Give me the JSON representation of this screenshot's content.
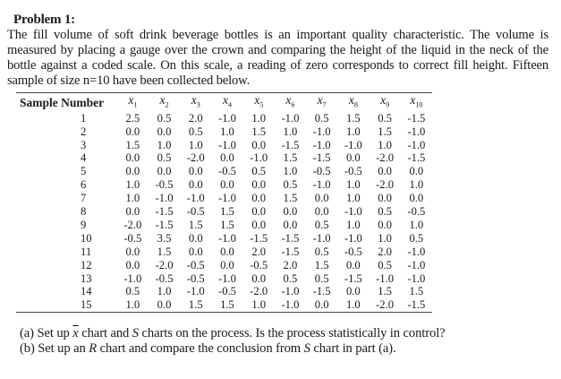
{
  "problem": {
    "title": "Problem 1:",
    "intro": "The fill volume of soft drink beverage bottles is an important quality characteristic. The volume is measured by placing a gauge over the crown and comparing the height of the liquid in the neck of the bottle against a coded scale. On this scale, a reading of zero corresponds to correct fill height. Fifteen sample of size n=10 have been collected below."
  },
  "table": {
    "sample_header": "Sample Number",
    "columns": [
      {
        "var": "x",
        "sub": "1"
      },
      {
        "var": "x",
        "sub": "2"
      },
      {
        "var": "x",
        "sub": "3"
      },
      {
        "var": "x",
        "sub": "4"
      },
      {
        "var": "x",
        "sub": "5"
      },
      {
        "var": "x",
        "sub": "6"
      },
      {
        "var": "x",
        "sub": "7"
      },
      {
        "var": "x",
        "sub": "8"
      },
      {
        "var": "x",
        "sub": "9"
      },
      {
        "var": "x",
        "sub": "10"
      }
    ],
    "rows": [
      {
        "sample": "1",
        "values": [
          "2.5",
          "0.5",
          "2.0",
          "-1.0",
          "1.0",
          "-1.0",
          "0.5",
          "1.5",
          "0.5",
          "-1.5"
        ]
      },
      {
        "sample": "2",
        "values": [
          "0.0",
          "0.0",
          "0.5",
          "1.0",
          "1.5",
          "1.0",
          "-1.0",
          "1.0",
          "1.5",
          "-1.0"
        ]
      },
      {
        "sample": "3",
        "values": [
          "1.5",
          "1.0",
          "1.0",
          "-1.0",
          "0.0",
          "-1.5",
          "-1.0",
          "-1.0",
          "1.0",
          "-1.0"
        ]
      },
      {
        "sample": "4",
        "values": [
          "0.0",
          "0.5",
          "-2.0",
          "0.0",
          "-1.0",
          "1.5",
          "-1.5",
          "0.0",
          "-2.0",
          "-1.5"
        ]
      },
      {
        "sample": "5",
        "values": [
          "0.0",
          "0.0",
          "0.0",
          "-0.5",
          "0.5",
          "1.0",
          "-0.5",
          "-0.5",
          "0.0",
          "0.0"
        ]
      },
      {
        "sample": "6",
        "values": [
          "1.0",
          "-0.5",
          "0.0",
          "0.0",
          "0.0",
          "0.5",
          "-1.0",
          "1.0",
          "-2.0",
          "1.0"
        ]
      },
      {
        "sample": "7",
        "values": [
          "1.0",
          "-1.0",
          "-1.0",
          "-1.0",
          "0.0",
          "1.5",
          "0.0",
          "1.0",
          "0.0",
          "0.0"
        ]
      },
      {
        "sample": "8",
        "values": [
          "0.0",
          "-1.5",
          "-0.5",
          "1.5",
          "0.0",
          "0.0",
          "0.0",
          "-1.0",
          "0.5",
          "-0.5"
        ]
      },
      {
        "sample": "9",
        "values": [
          "-2.0",
          "-1.5",
          "1.5",
          "1.5",
          "0.0",
          "0.0",
          "0.5",
          "1.0",
          "0.0",
          "1.0"
        ]
      },
      {
        "sample": "10",
        "values": [
          "-0.5",
          "3.5",
          "0.0",
          "-1.0",
          "-1.5",
          "-1.5",
          "-1.0",
          "-1.0",
          "1.0",
          "0.5"
        ]
      },
      {
        "sample": "11",
        "values": [
          "0.0",
          "1.5",
          "0.0",
          "0.0",
          "2.0",
          "-1.5",
          "0.5",
          "-0.5",
          "2.0",
          "-1.0"
        ]
      },
      {
        "sample": "12",
        "values": [
          "0.0",
          "-2.0",
          "-0.5",
          "0.0",
          "-0.5",
          "2.0",
          "1.5",
          "0.0",
          "0.5",
          "-1.0"
        ]
      },
      {
        "sample": "13",
        "values": [
          "-1.0",
          "-0.5",
          "-0.5",
          "-1.0",
          "0.0",
          "0.5",
          "0.5",
          "-1.5",
          "-1.0",
          "-1.0"
        ]
      },
      {
        "sample": "14",
        "values": [
          "0.5",
          "1.0",
          "-1.0",
          "-0.5",
          "-2.0",
          "-1.0",
          "-1.5",
          "0.0",
          "1.5",
          "1.5"
        ]
      },
      {
        "sample": "15",
        "values": [
          "1.0",
          "0.0",
          "1.5",
          "1.5",
          "1.0",
          "-1.0",
          "0.0",
          "1.0",
          "-2.0",
          "-1.5"
        ]
      }
    ]
  },
  "questions": {
    "a": {
      "prefix": "(a) Set up ",
      "symbol": "x",
      "suffix_1": " chart and ",
      "s": "S",
      "suffix_2": " charts on the process. Is the process statistically in control?"
    },
    "b": {
      "prefix": "(b) Set up an ",
      "r": "R",
      "middle": " chart and compare the conclusion from ",
      "s": "S",
      "suffix": " chart in part (a)."
    }
  }
}
